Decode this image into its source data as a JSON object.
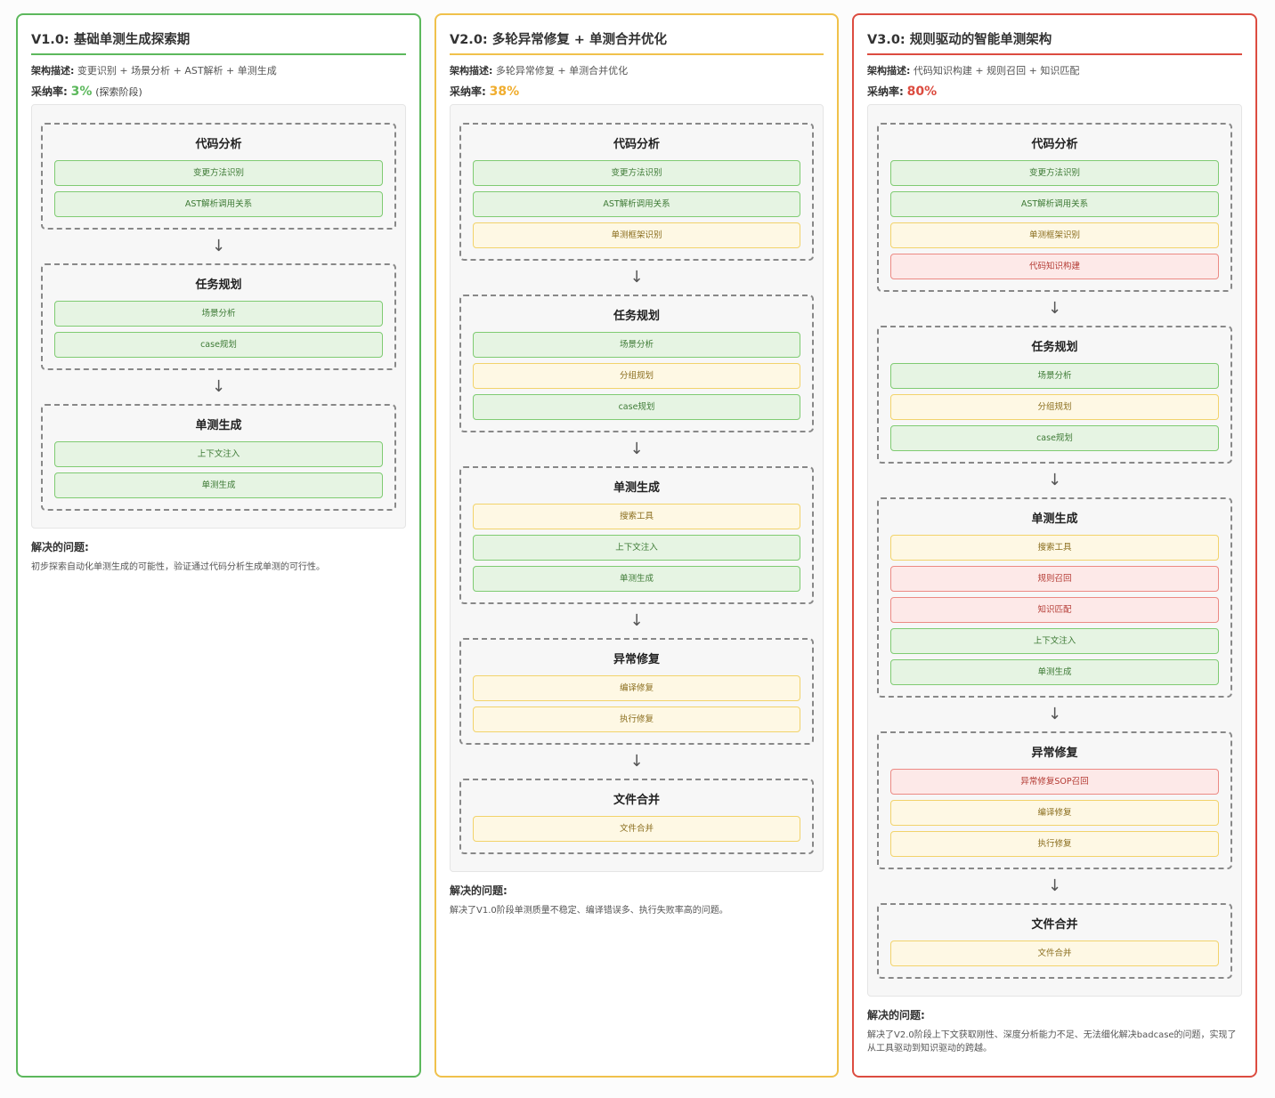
{
  "columns": [
    {
      "key": "v1",
      "title": "V1.0: 基础单测生成探索期",
      "desc_label": "架构描述:",
      "desc_text": "变更识别 + 场景分析 + AST解析 + 单测生成",
      "rate_label": "采纳率:",
      "rate_value": "3%",
      "rate_note": "(探索阶段)",
      "stages": [
        {
          "title": "代码分析",
          "steps": [
            {
              "label": "变更方法识别",
              "color": "green"
            },
            {
              "label": "AST解析调用关系",
              "color": "green"
            }
          ]
        },
        {
          "title": "任务规划",
          "steps": [
            {
              "label": "场景分析",
              "color": "green"
            },
            {
              "label": "case规划",
              "color": "green"
            }
          ]
        },
        {
          "title": "单测生成",
          "steps": [
            {
              "label": "上下文注入",
              "color": "green"
            },
            {
              "label": "单测生成",
              "color": "green"
            }
          ]
        }
      ],
      "solved_title": "解决的问题:",
      "solved_text": "初步探索自动化单测生成的可能性，验证通过代码分析生成单测的可行性。"
    },
    {
      "key": "v2",
      "title": "V2.0: 多轮异常修复 + 单测合并优化",
      "desc_label": "架构描述:",
      "desc_text": "多轮异常修复 + 单测合并优化",
      "rate_label": "采纳率:",
      "rate_value": "38%",
      "rate_note": "",
      "stages": [
        {
          "title": "代码分析",
          "steps": [
            {
              "label": "变更方法识别",
              "color": "green"
            },
            {
              "label": "AST解析调用关系",
              "color": "green"
            },
            {
              "label": "单测框架识别",
              "color": "yellow"
            }
          ]
        },
        {
          "title": "任务规划",
          "steps": [
            {
              "label": "场景分析",
              "color": "green"
            },
            {
              "label": "分组规划",
              "color": "yellow"
            },
            {
              "label": "case规划",
              "color": "green"
            }
          ]
        },
        {
          "title": "单测生成",
          "steps": [
            {
              "label": "搜索工具",
              "color": "yellow"
            },
            {
              "label": "上下文注入",
              "color": "green"
            },
            {
              "label": "单测生成",
              "color": "green"
            }
          ]
        },
        {
          "title": "异常修复",
          "steps": [
            {
              "label": "编译修复",
              "color": "yellow"
            },
            {
              "label": "执行修复",
              "color": "yellow"
            }
          ]
        },
        {
          "title": "文件合并",
          "steps": [
            {
              "label": "文件合并",
              "color": "yellow"
            }
          ]
        }
      ],
      "solved_title": "解决的问题:",
      "solved_text": "解决了V1.0阶段单测质量不稳定、编译错误多、执行失败率高的问题。"
    },
    {
      "key": "v3",
      "title": "V3.0: 规则驱动的智能单测架构",
      "desc_label": "架构描述:",
      "desc_text": "代码知识构建 + 规则召回 + 知识匹配",
      "rate_label": "采纳率:",
      "rate_value": "80%",
      "rate_note": "",
      "stages": [
        {
          "title": "代码分析",
          "steps": [
            {
              "label": "变更方法识别",
              "color": "green"
            },
            {
              "label": "AST解析调用关系",
              "color": "green"
            },
            {
              "label": "单测框架识别",
              "color": "yellow"
            },
            {
              "label": "代码知识构建",
              "color": "red"
            }
          ]
        },
        {
          "title": "任务规划",
          "steps": [
            {
              "label": "场景分析",
              "color": "green"
            },
            {
              "label": "分组规划",
              "color": "yellow"
            },
            {
              "label": "case规划",
              "color": "green"
            }
          ]
        },
        {
          "title": "单测生成",
          "steps": [
            {
              "label": "搜索工具",
              "color": "yellow"
            },
            {
              "label": "规则召回",
              "color": "red"
            },
            {
              "label": "知识匹配",
              "color": "red"
            },
            {
              "label": "上下文注入",
              "color": "green"
            },
            {
              "label": "单测生成",
              "color": "green"
            }
          ]
        },
        {
          "title": "异常修复",
          "steps": [
            {
              "label": "异常修复SOP召回",
              "color": "red"
            },
            {
              "label": "编译修复",
              "color": "yellow"
            },
            {
              "label": "执行修复",
              "color": "yellow"
            }
          ]
        },
        {
          "title": "文件合并",
          "steps": [
            {
              "label": "文件合并",
              "color": "yellow"
            }
          ]
        }
      ],
      "solved_title": "解决的问题:",
      "solved_text": "解决了V2.0阶段上下文获取刚性、深度分析能力不足、无法细化解决badcase的问题，实现了从工具驱动到知识驱动的跨越。"
    }
  ],
  "arrow_glyph": "↓"
}
